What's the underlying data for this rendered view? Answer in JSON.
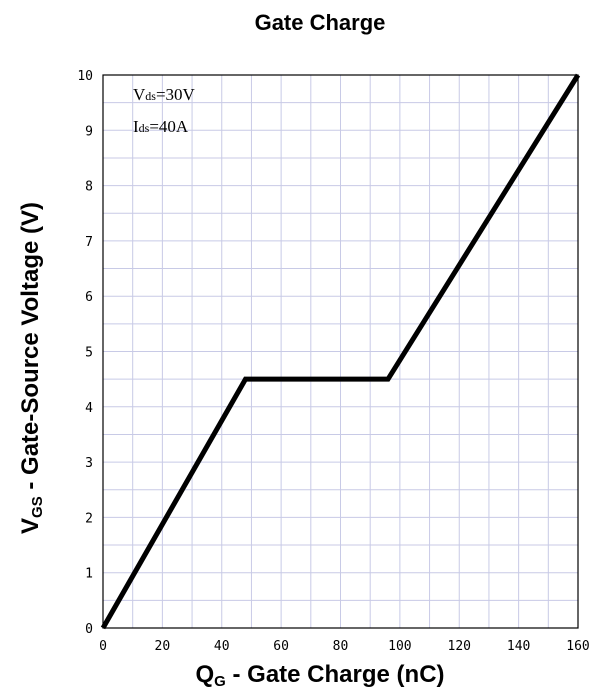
{
  "chart_data": {
    "type": "line",
    "title": "Gate Charge",
    "xlabel": {
      "main": "Q",
      "sub": "G",
      "rest": " - Gate Charge (nC)"
    },
    "ylabel": {
      "main": "V",
      "sub": "GS",
      "rest": " - Gate-Source Voltage (V)"
    },
    "xlim": [
      0,
      160
    ],
    "ylim": [
      0,
      10
    ],
    "x_ticks": [
      "0",
      "20",
      "40",
      "60",
      "80",
      "100",
      "120",
      "140",
      "160"
    ],
    "y_ticks": [
      "0",
      "1",
      "2",
      "3",
      "4",
      "5",
      "6",
      "7",
      "8",
      "9",
      "10"
    ],
    "grid": true,
    "series": [
      {
        "x": [
          0,
          48,
          96,
          160
        ],
        "y": [
          0,
          4.5,
          4.5,
          10
        ]
      }
    ],
    "annotations": [
      {
        "main": "V",
        "sub": "ds",
        "rest": "=30V"
      },
      {
        "main": "I",
        "sub": "ds",
        "rest": "=40A"
      }
    ],
    "colors": {
      "grid": "#c8cae6",
      "line": "#000000",
      "frame": "#000000"
    }
  }
}
